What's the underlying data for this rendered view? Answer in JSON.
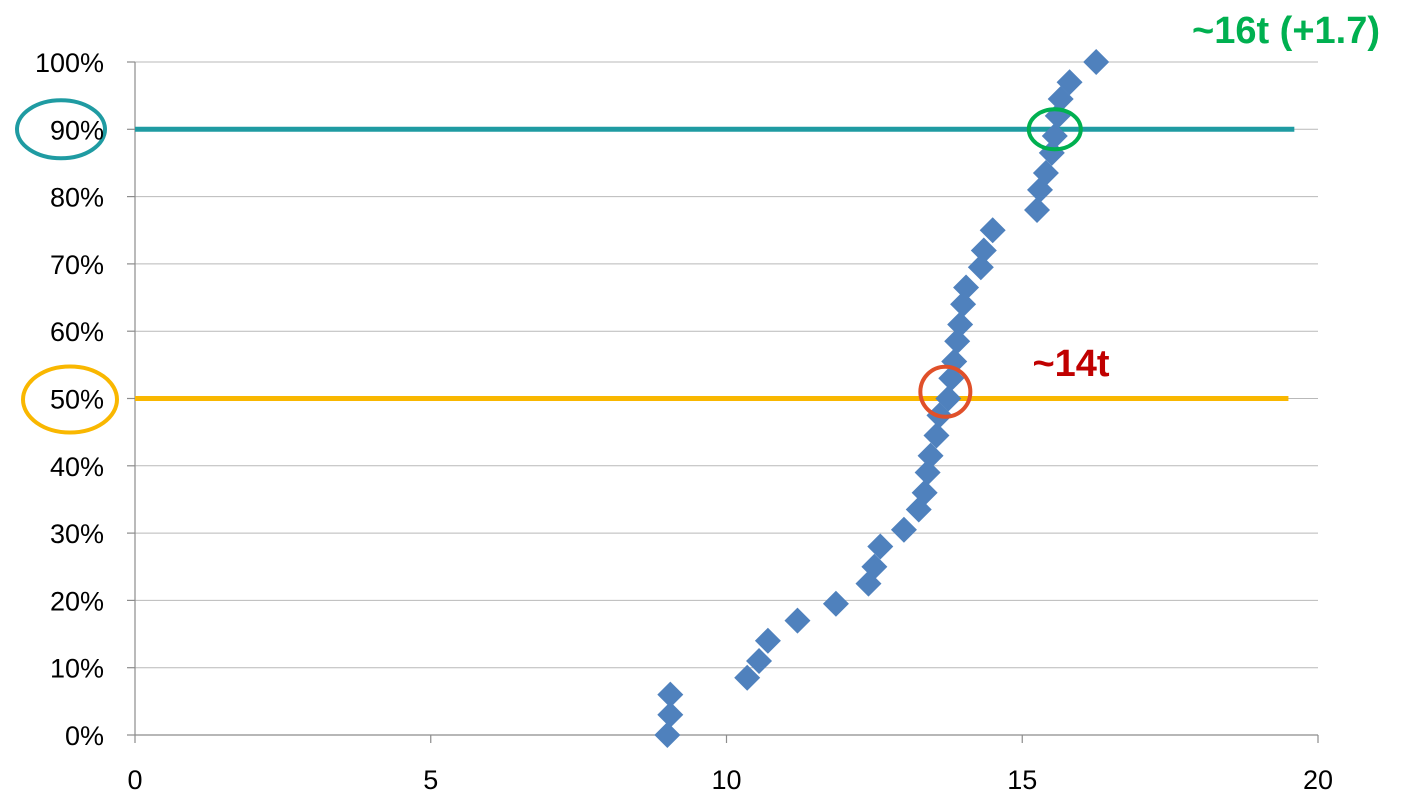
{
  "chart_data": {
    "type": "scatter",
    "title": "",
    "xlabel": "",
    "ylabel": "",
    "xlim": [
      0,
      20
    ],
    "ylim": [
      0,
      1
    ],
    "grid": "horizontal",
    "x_ticks": [
      "0",
      "5",
      "10",
      "15",
      "20"
    ],
    "y_ticks": [
      "0%",
      "10%",
      "20%",
      "30%",
      "40%",
      "50%",
      "60%",
      "70%",
      "80%",
      "90%",
      "100%"
    ],
    "series": [
      {
        "marker": "diamond",
        "color": "#4F81BD",
        "points": [
          {
            "x": 9.0,
            "y": 0.0
          },
          {
            "x": 9.05,
            "y": 0.03
          },
          {
            "x": 9.05,
            "y": 0.06
          },
          {
            "x": 10.35,
            "y": 0.085
          },
          {
            "x": 10.55,
            "y": 0.11
          },
          {
            "x": 10.7,
            "y": 0.14
          },
          {
            "x": 11.2,
            "y": 0.17
          },
          {
            "x": 11.85,
            "y": 0.195
          },
          {
            "x": 12.4,
            "y": 0.225
          },
          {
            "x": 12.5,
            "y": 0.25
          },
          {
            "x": 12.6,
            "y": 0.28
          },
          {
            "x": 13.0,
            "y": 0.305
          },
          {
            "x": 13.25,
            "y": 0.335
          },
          {
            "x": 13.35,
            "y": 0.36
          },
          {
            "x": 13.4,
            "y": 0.39
          },
          {
            "x": 13.45,
            "y": 0.415
          },
          {
            "x": 13.55,
            "y": 0.445
          },
          {
            "x": 13.6,
            "y": 0.475
          },
          {
            "x": 13.75,
            "y": 0.5
          },
          {
            "x": 13.8,
            "y": 0.53
          },
          {
            "x": 13.85,
            "y": 0.555
          },
          {
            "x": 13.9,
            "y": 0.585
          },
          {
            "x": 13.95,
            "y": 0.61
          },
          {
            "x": 14.0,
            "y": 0.64
          },
          {
            "x": 14.05,
            "y": 0.665
          },
          {
            "x": 14.3,
            "y": 0.695
          },
          {
            "x": 14.35,
            "y": 0.72
          },
          {
            "x": 14.5,
            "y": 0.75
          },
          {
            "x": 15.25,
            "y": 0.78
          },
          {
            "x": 15.3,
            "y": 0.81
          },
          {
            "x": 15.4,
            "y": 0.835
          },
          {
            "x": 15.5,
            "y": 0.865
          },
          {
            "x": 15.55,
            "y": 0.89
          },
          {
            "x": 15.6,
            "y": 0.92
          },
          {
            "x": 15.65,
            "y": 0.945
          },
          {
            "x": 15.8,
            "y": 0.97
          },
          {
            "x": 16.25,
            "y": 1.0
          }
        ]
      }
    ],
    "reference_lines": [
      {
        "y": 0.9,
        "x_end": 19.6,
        "color": "#1F9BA2"
      },
      {
        "y": 0.5,
        "x_end": 19.5,
        "color": "#F9B700"
      }
    ],
    "annotations": [
      {
        "text": "~16t (+1.7)",
        "color": "#00B050"
      },
      {
        "text": "~14t",
        "color": "#C00000"
      }
    ],
    "highlight_circles": [
      {
        "target": "y-label-90",
        "color": "#1F9BA2"
      },
      {
        "target": "y-label-50",
        "color": "#F9B700"
      },
      {
        "target": "point-90",
        "cx": 15.55,
        "cy": 0.9,
        "color": "#00B050"
      },
      {
        "target": "point-50",
        "cx": 13.7,
        "cy": 0.51,
        "color": "#E0502A"
      }
    ]
  }
}
